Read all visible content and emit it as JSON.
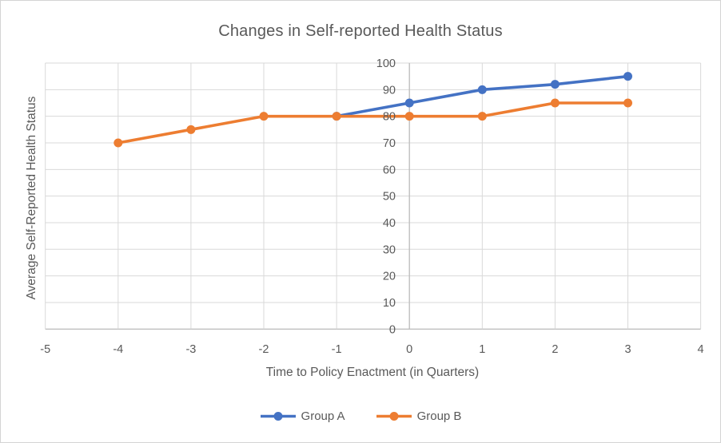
{
  "chart_data": {
    "type": "line",
    "title": "Changes in Self-reported Health Status",
    "xlabel": "Time to Policy Enactment (in Quarters)",
    "ylabel": "Average Self-Reported Health Status",
    "xlim": [
      -5,
      4
    ],
    "ylim": [
      0,
      100
    ],
    "x_ticks": [
      -5,
      -4,
      -3,
      -2,
      -1,
      0,
      1,
      2,
      3,
      4
    ],
    "y_ticks": [
      0,
      10,
      20,
      30,
      40,
      50,
      60,
      70,
      80,
      90,
      100
    ],
    "grid": true,
    "axis_cross_x": 0,
    "legend_position": "bottom",
    "series": [
      {
        "name": "Group A",
        "color": "#4472C4",
        "x": [
          -1,
          0,
          1,
          2,
          3
        ],
        "y": [
          80,
          85,
          90,
          92,
          95
        ]
      },
      {
        "name": "Group B",
        "color": "#ED7D31",
        "x": [
          -4,
          -3,
          -2,
          -1,
          0,
          1,
          2,
          3
        ],
        "y": [
          70,
          75,
          80,
          80,
          80,
          80,
          85,
          85
        ]
      }
    ],
    "colors": {
      "gridline": "#D9D9D9",
      "axis_line": "#BFBFBF",
      "text": "#595959",
      "background": "#FFFFFF",
      "frame_border": "#D4D4D4"
    }
  }
}
